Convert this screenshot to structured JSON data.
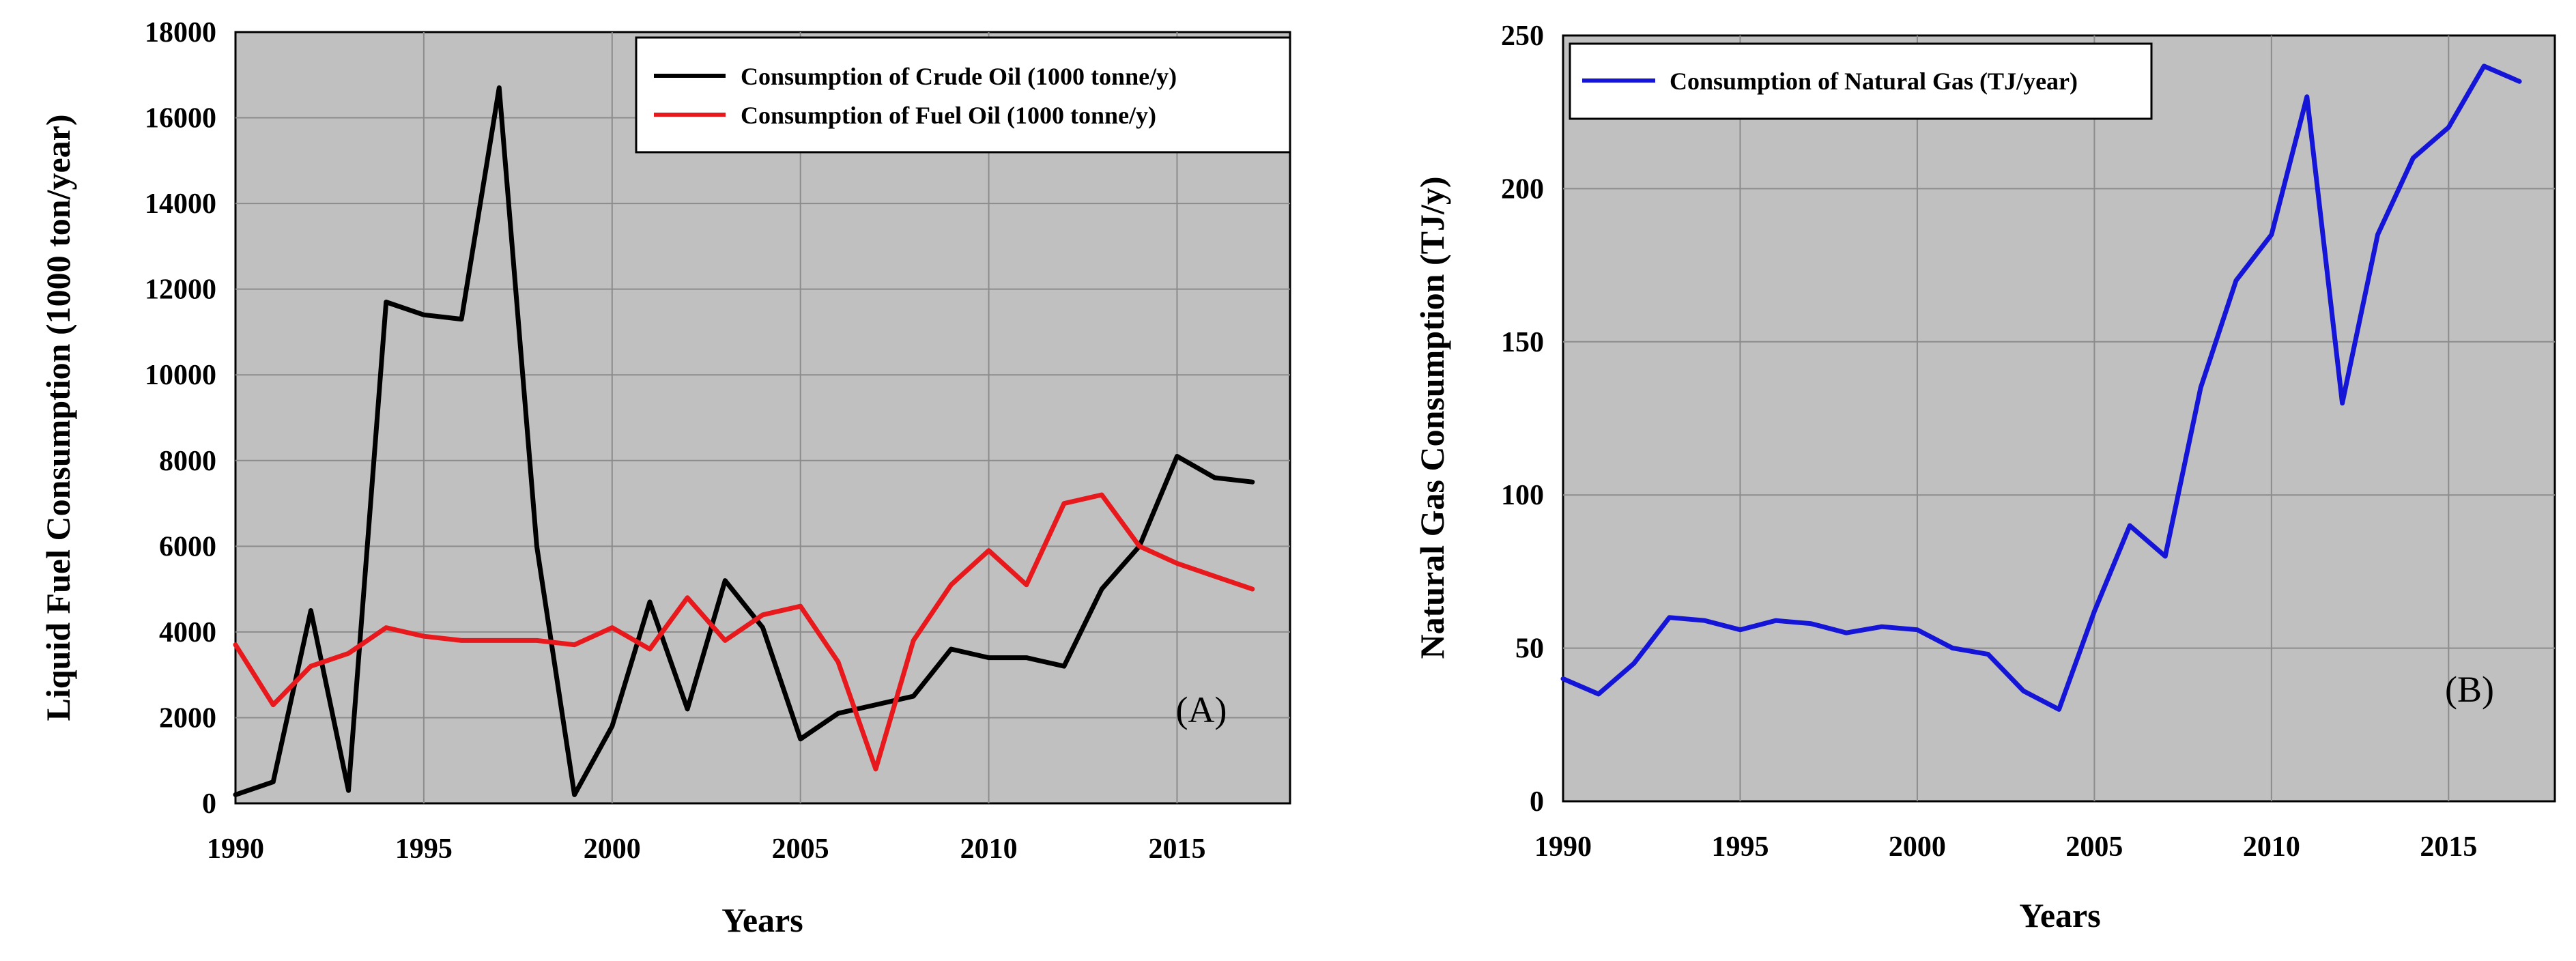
{
  "chart_data": [
    {
      "panel": "A",
      "type": "line",
      "panel_label": "(A)",
      "xlabel": "Years",
      "ylabel": "Liquid Fuel Consumption (1000 ton/year)",
      "xlim": [
        1990,
        2018
      ],
      "ylim": [
        0,
        18000
      ],
      "xticks": [
        1990,
        1995,
        2000,
        2005,
        2010,
        2015
      ],
      "yticks": [
        0,
        2000,
        4000,
        6000,
        8000,
        10000,
        12000,
        14000,
        16000,
        18000
      ],
      "grid": true,
      "legend_position": "top-right",
      "x": [
        1990,
        1991,
        1992,
        1993,
        1994,
        1995,
        1996,
        1997,
        1998,
        1999,
        2000,
        2001,
        2002,
        2003,
        2004,
        2005,
        2006,
        2007,
        2008,
        2009,
        2010,
        2011,
        2012,
        2013,
        2014,
        2015,
        2016,
        2017
      ],
      "series": [
        {
          "name": "Consumption of Crude Oil (1000 tonne/y)",
          "color": "#000000",
          "values": [
            200,
            500,
            4500,
            300,
            11700,
            11400,
            11300,
            16700,
            6000,
            200,
            1800,
            4700,
            2200,
            5200,
            4100,
            1500,
            2100,
            2300,
            2500,
            3600,
            3400,
            3400,
            3200,
            5000,
            6000,
            8100,
            7600,
            7500
          ]
        },
        {
          "name": "Consumption of Fuel Oil (1000 tonne/y)",
          "color": "#e8191c",
          "values": [
            3700,
            2300,
            3200,
            3500,
            4100,
            3900,
            3800,
            3800,
            3800,
            3700,
            4100,
            3600,
            4800,
            3800,
            4400,
            4600,
            3300,
            800,
            3800,
            5100,
            5900,
            5100,
            7000,
            7200,
            6000,
            5600,
            5300,
            5000
          ]
        }
      ]
    },
    {
      "panel": "B",
      "type": "line",
      "panel_label": "(B)",
      "xlabel": "Years",
      "ylabel": "Natural Gas Consumption (TJ/y)",
      "xlim": [
        1990,
        2018
      ],
      "ylim": [
        0,
        250
      ],
      "xticks": [
        1990,
        1995,
        2000,
        2005,
        2010,
        2015
      ],
      "yticks": [
        0,
        50,
        100,
        150,
        200,
        250
      ],
      "grid": true,
      "legend_position": "top-left",
      "x": [
        1990,
        1991,
        1992,
        1993,
        1994,
        1995,
        1996,
        1997,
        1998,
        1999,
        2000,
        2001,
        2002,
        2003,
        2004,
        2005,
        2006,
        2007,
        2008,
        2009,
        2010,
        2011,
        2012,
        2013,
        2014,
        2015,
        2016,
        2017
      ],
      "series": [
        {
          "name": "Consumption of Natural Gas (TJ/year)",
          "color": "#1515d8",
          "values": [
            40,
            35,
            45,
            60,
            59,
            56,
            59,
            58,
            55,
            57,
            56,
            50,
            48,
            36,
            30,
            62,
            90,
            80,
            135,
            170,
            185,
            230,
            130,
            185,
            210,
            220,
            240,
            235
          ]
        }
      ]
    }
  ]
}
